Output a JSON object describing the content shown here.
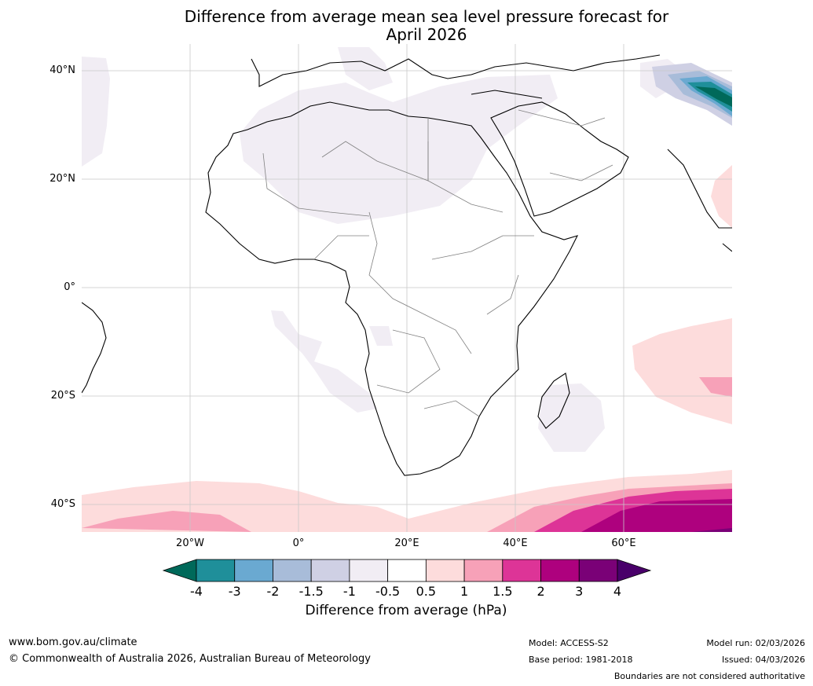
{
  "title": {
    "line1": "Difference from average mean sea level pressure forecast for",
    "line2": "April 2026"
  },
  "map": {
    "lat_labels": [
      "40°N",
      "20°N",
      "0°",
      "20°S",
      "40°S"
    ],
    "lon_labels": [
      "20°W",
      "0°",
      "20°E",
      "40°E",
      "60°E"
    ]
  },
  "colorbar": {
    "title": "Difference from average (hPa)",
    "ticks": [
      "-4",
      "-3",
      "-2",
      "-1.5",
      "-1",
      "-0.5",
      "0.5",
      "1",
      "1.5",
      "2",
      "3",
      "4"
    ],
    "colors": {
      "below_min": "#00695a",
      "bin_1": "#1f8f9a",
      "bin_2": "#6aa9d1",
      "bin_3": "#a8bcd9",
      "bin_4": "#cfd0e4",
      "bin_5": "#f1edf4",
      "bin_6": "#ffffff",
      "bin_7": "#fddcdc",
      "bin_8": "#f7a1b8",
      "bin_9": "#dd3497",
      "bin_10": "#ae017e",
      "bin_11": "#7a0177",
      "above_max": "#49006a"
    }
  },
  "footer": {
    "website": "www.bom.gov.au/climate",
    "copyright": "© Commonwealth of Australia 2026, Australian Bureau of Meteorology",
    "model": "Model: ACCESS-S2",
    "base_period": "Base period: 1981-2018",
    "model_run": "Model run: 02/03/2026",
    "issued": "Issued: 04/03/2026",
    "disclaimer": "Boundaries are not considered authoritative"
  }
}
